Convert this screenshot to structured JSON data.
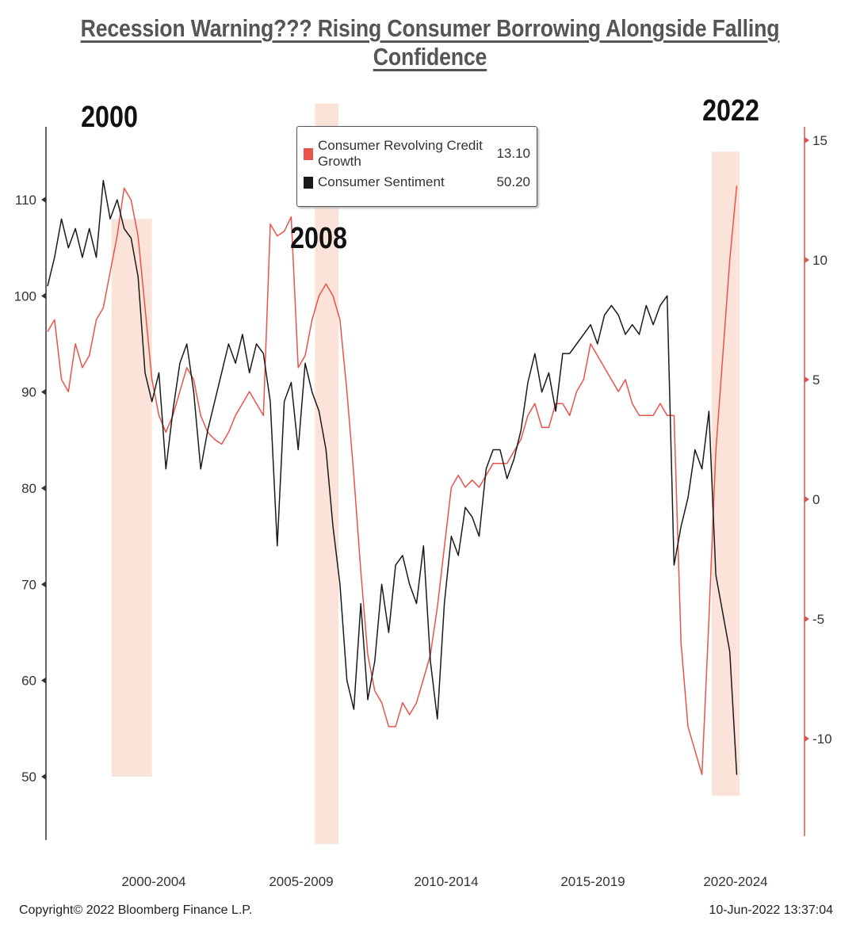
{
  "title": "Recession Warning??? Rising Consumer Borrowing Alongside Falling Confidence",
  "footer": {
    "copyright": "Copyright© 2022 Bloomberg Finance L.P.",
    "timestamp": "10-Jun-2022 13:37:04"
  },
  "annotations": [
    "2000",
    "2008",
    "2022"
  ],
  "colors": {
    "credit": "#e8534a",
    "sentiment": "#1a1a1a",
    "shade": "#fbe3da",
    "right_axis": "#d9534f"
  },
  "chart_data": {
    "type": "line",
    "title": "Recession Warning??? Rising Consumer Borrowing Alongside Falling Confidence",
    "x_range": [
      1997.5,
      2023.9
    ],
    "x_tick_labels": [
      "2000-2004",
      "2005-2009",
      "2010-2014",
      "2015-2019",
      "2020-2024"
    ],
    "left_axis": {
      "range": [
        44,
        118
      ],
      "ticks": [
        50,
        60,
        70,
        80,
        90,
        100,
        110
      ]
    },
    "right_axis": {
      "range": [
        -14,
        15.5
      ],
      "ticks": [
        -10,
        -5,
        0,
        5,
        10,
        15
      ]
    },
    "legend": {
      "position": "top-center"
    },
    "series": [
      {
        "name": "Consumer Revolving Credit Growth",
        "last_value": "13.10",
        "axis": "right",
        "x": [
          1997.5,
          1997.75,
          1998.0,
          1998.25,
          1998.5,
          1998.75,
          1999.0,
          1999.25,
          1999.5,
          1999.75,
          2000.0,
          2000.25,
          2000.5,
          2000.75,
          2001.0,
          2001.25,
          2001.5,
          2001.75,
          2002.0,
          2002.25,
          2002.5,
          2002.75,
          2003.0,
          2003.25,
          2003.5,
          2003.75,
          2004.0,
          2004.25,
          2004.5,
          2004.75,
          2005.0,
          2005.25,
          2005.5,
          2005.75,
          2006.0,
          2006.25,
          2006.5,
          2006.75,
          2007.0,
          2007.25,
          2007.5,
          2007.75,
          2008.0,
          2008.25,
          2008.5,
          2008.75,
          2009.0,
          2009.25,
          2009.5,
          2009.75,
          2010.0,
          2010.25,
          2010.5,
          2010.75,
          2011.0,
          2011.25,
          2011.5,
          2011.75,
          2012.0,
          2012.25,
          2012.5,
          2012.75,
          2013.0,
          2013.25,
          2013.5,
          2013.75,
          2014.0,
          2014.25,
          2014.5,
          2014.75,
          2015.0,
          2015.25,
          2015.5,
          2015.75,
          2016.0,
          2016.25,
          2016.5,
          2016.75,
          2017.0,
          2017.25,
          2017.5,
          2017.75,
          2018.0,
          2018.25,
          2018.5,
          2018.75,
          2019.0,
          2019.25,
          2019.5,
          2019.75,
          2020.0,
          2020.25,
          2020.5,
          2020.75,
          2021.0,
          2021.25,
          2021.5,
          2021.75,
          2022.0,
          2022.25
        ],
        "values": [
          7,
          7.5,
          5,
          4.5,
          6.5,
          5.5,
          6,
          7.5,
          8,
          9.5,
          11,
          13,
          12.5,
          11,
          8,
          5,
          3.5,
          2.8,
          3.5,
          4.5,
          5.5,
          5,
          3.5,
          2.8,
          2.5,
          2.3,
          2.8,
          3.5,
          4,
          4.5,
          4,
          3.5,
          11.5,
          11,
          11.2,
          11.8,
          5.5,
          6,
          7.5,
          8.5,
          9,
          8.5,
          7.5,
          4.5,
          1,
          -3,
          -6.5,
          -8,
          -8.5,
          -9.5,
          -9.5,
          -8.5,
          -9,
          -8.5,
          -7.5,
          -6.5,
          -4.5,
          -2,
          0.5,
          1,
          0.5,
          0.8,
          0.5,
          1,
          1.5,
          1.5,
          1.5,
          2,
          2.5,
          3.5,
          4,
          3,
          3,
          4,
          4,
          3.5,
          4.5,
          5,
          6.5,
          6,
          5.5,
          5,
          4.5,
          5,
          4,
          3.5,
          3.5,
          3.5,
          4,
          3.5,
          3.5,
          -6,
          -9.5,
          -10.5,
          -11.5,
          -5,
          2,
          6,
          10,
          13.1
        ]
      },
      {
        "name": "Consumer Sentiment",
        "last_value": "50.20",
        "axis": "left",
        "x": [
          1997.5,
          1997.75,
          1998.0,
          1998.25,
          1998.5,
          1998.75,
          1999.0,
          1999.25,
          1999.5,
          1999.75,
          2000.0,
          2000.25,
          2000.5,
          2000.75,
          2001.0,
          2001.25,
          2001.5,
          2001.75,
          2002.0,
          2002.25,
          2002.5,
          2002.75,
          2003.0,
          2003.25,
          2003.5,
          2003.75,
          2004.0,
          2004.25,
          2004.5,
          2004.75,
          2005.0,
          2005.25,
          2005.5,
          2005.75,
          2006.0,
          2006.25,
          2006.5,
          2006.75,
          2007.0,
          2007.25,
          2007.5,
          2007.75,
          2008.0,
          2008.25,
          2008.5,
          2008.75,
          2009.0,
          2009.25,
          2009.5,
          2009.75,
          2010.0,
          2010.25,
          2010.5,
          2010.75,
          2011.0,
          2011.25,
          2011.5,
          2011.75,
          2012.0,
          2012.25,
          2012.5,
          2012.75,
          2013.0,
          2013.25,
          2013.5,
          2013.75,
          2014.0,
          2014.25,
          2014.5,
          2014.75,
          2015.0,
          2015.25,
          2015.5,
          2015.75,
          2016.0,
          2016.25,
          2016.5,
          2016.75,
          2017.0,
          2017.25,
          2017.5,
          2017.75,
          2018.0,
          2018.25,
          2018.5,
          2018.75,
          2019.0,
          2019.25,
          2019.5,
          2019.75,
          2020.0,
          2020.25,
          2020.5,
          2020.75,
          2021.0,
          2021.25,
          2021.5,
          2021.75,
          2022.0,
          2022.25
        ],
        "values": [
          101,
          104,
          108,
          105,
          107,
          104,
          107,
          104,
          112,
          108,
          110,
          107,
          106,
          102,
          92,
          89,
          92,
          82,
          88,
          93,
          95,
          90,
          82,
          86,
          89,
          92,
          95,
          93,
          96,
          92,
          95,
          94,
          89,
          74,
          89,
          91,
          84,
          93,
          90,
          88,
          84,
          76,
          70,
          60,
          57,
          68,
          58,
          62,
          70,
          65,
          72,
          73,
          70,
          68,
          74,
          62,
          56,
          68,
          75,
          73,
          78,
          77,
          75,
          82,
          84,
          84,
          81,
          83,
          86,
          91,
          94,
          90,
          92,
          88,
          94,
          94,
          95,
          96,
          97,
          95,
          98,
          99,
          98,
          96,
          97,
          96,
          99,
          97,
          99,
          100,
          72,
          76,
          79,
          84,
          82,
          88,
          71,
          67,
          63,
          50.2
        ]
      }
    ],
    "shaded_periods": [
      {
        "label": "2000",
        "x": [
          1999.8,
          2001.25
        ],
        "y": [
          50,
          108
        ]
      },
      {
        "label": "2008",
        "x": [
          2007.1,
          2007.95
        ],
        "y": [
          43,
          120
        ]
      },
      {
        "label": "2022",
        "x": [
          2021.35,
          2022.35
        ],
        "y": [
          48,
          115
        ]
      }
    ]
  }
}
